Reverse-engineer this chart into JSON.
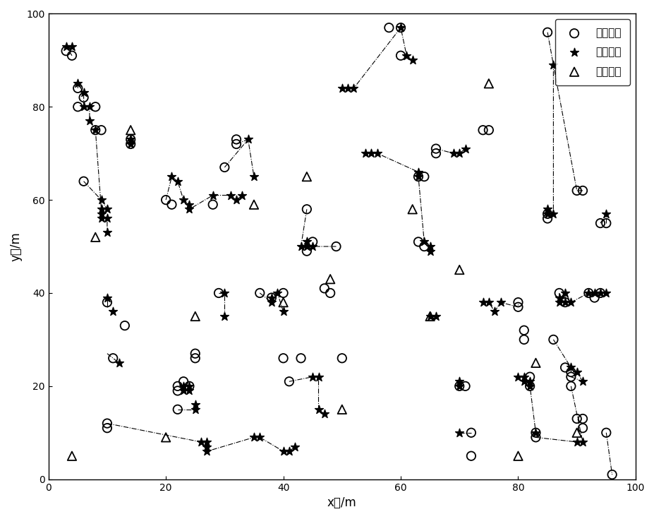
{
  "unknown_nodes_x": [
    3,
    4,
    5,
    5,
    6,
    6,
    8,
    8,
    9,
    10,
    10,
    10,
    11,
    13,
    14,
    14,
    20,
    21,
    22,
    22,
    22,
    23,
    24,
    25,
    25,
    28,
    29,
    30,
    32,
    32,
    36,
    38,
    40,
    40,
    41,
    43,
    44,
    44,
    45,
    47,
    48,
    49,
    50,
    58,
    60,
    60,
    63,
    64,
    63,
    64,
    66,
    66,
    70,
    71,
    72,
    72,
    74,
    75,
    80,
    80,
    81,
    81,
    82,
    82,
    83,
    83,
    85,
    85,
    85,
    86,
    87,
    88,
    88,
    89,
    89,
    89,
    90,
    91,
    90,
    91,
    91,
    92,
    93,
    94,
    94,
    95,
    95,
    96
  ],
  "unknown_nodes_y": [
    92,
    91,
    84,
    80,
    82,
    64,
    80,
    75,
    75,
    12,
    11,
    38,
    26,
    33,
    72,
    73,
    60,
    59,
    20,
    19,
    15,
    21,
    20,
    26,
    27,
    59,
    40,
    67,
    72,
    73,
    40,
    39,
    40,
    26,
    21,
    26,
    58,
    49,
    51,
    41,
    40,
    50,
    26,
    97,
    97,
    91,
    65,
    65,
    51,
    50,
    71,
    70,
    20,
    20,
    10,
    5,
    75,
    75,
    38,
    37,
    32,
    30,
    22,
    20,
    10,
    9,
    57,
    56,
    96,
    30,
    40,
    38,
    24,
    23,
    22,
    20,
    13,
    13,
    62,
    62,
    11,
    40,
    39,
    40,
    55,
    55,
    10,
    1
  ],
  "star_nodes_x": [
    3,
    4,
    5,
    6,
    6,
    7,
    7,
    8,
    9,
    9,
    9,
    9,
    10,
    10,
    10,
    10,
    11,
    12,
    14,
    14,
    21,
    22,
    23,
    24,
    24,
    23,
    23,
    24,
    24,
    25,
    25,
    26,
    27,
    27,
    27,
    28,
    30,
    30,
    31,
    32,
    33,
    34,
    35,
    35,
    36,
    38,
    38,
    39,
    40,
    40,
    41,
    42,
    43,
    44,
    44,
    45,
    45,
    46,
    46,
    47,
    50,
    51,
    52,
    54,
    55,
    56,
    60,
    61,
    62,
    63,
    63,
    64,
    65,
    65,
    65,
    66,
    69,
    70,
    71,
    70,
    70,
    70,
    74,
    75,
    76,
    77,
    80,
    81,
    81,
    82,
    82,
    83,
    85,
    85,
    86,
    86,
    87,
    87,
    88,
    88,
    89,
    89,
    90,
    90,
    91,
    91,
    92,
    93,
    94,
    95,
    95
  ],
  "star_nodes_y": [
    93,
    93,
    85,
    83,
    80,
    80,
    77,
    75,
    60,
    58,
    57,
    56,
    58,
    56,
    53,
    39,
    36,
    25,
    72,
    73,
    65,
    64,
    60,
    59,
    58,
    20,
    19,
    20,
    19,
    16,
    15,
    8,
    8,
    7,
    6,
    61,
    40,
    35,
    61,
    60,
    61,
    73,
    65,
    9,
    9,
    39,
    38,
    40,
    36,
    6,
    6,
    7,
    50,
    51,
    50,
    50,
    22,
    22,
    15,
    14,
    84,
    84,
    84,
    70,
    70,
    70,
    97,
    91,
    90,
    65,
    66,
    51,
    50,
    49,
    35,
    35,
    70,
    70,
    71,
    20,
    21,
    10,
    38,
    38,
    36,
    38,
    22,
    22,
    21,
    21,
    20,
    10,
    57,
    58,
    57,
    89,
    38,
    39,
    40,
    38,
    38,
    24,
    23,
    8,
    21,
    8,
    40,
    40,
    40,
    40,
    57
  ],
  "beacon_nodes_x": [
    4,
    8,
    14,
    20,
    25,
    35,
    40,
    44,
    48,
    50,
    62,
    65,
    70,
    75,
    80,
    83,
    90
  ],
  "beacon_nodes_y": [
    5,
    52,
    75,
    9,
    35,
    59,
    38,
    65,
    43,
    15,
    58,
    35,
    45,
    85,
    5,
    25,
    10
  ],
  "line_chains": [
    [
      [
        4,
        91
      ],
      [
        3,
        93
      ]
    ],
    [
      [
        5,
        84
      ],
      [
        5,
        85
      ],
      [
        6,
        83
      ],
      [
        6,
        80
      ],
      [
        7,
        80
      ],
      [
        7,
        77
      ],
      [
        8,
        75
      ],
      [
        9,
        58
      ],
      [
        9,
        57
      ],
      [
        9,
        56
      ],
      [
        10,
        56
      ],
      [
        10,
        53
      ]
    ],
    [
      [
        6,
        64
      ],
      [
        9,
        60
      ],
      [
        10,
        58
      ]
    ],
    [
      [
        20,
        60
      ],
      [
        21,
        65
      ],
      [
        22,
        64
      ],
      [
        23,
        60
      ],
      [
        24,
        59
      ],
      [
        24,
        58
      ],
      [
        28,
        61
      ],
      [
        31,
        61
      ],
      [
        32,
        60
      ],
      [
        33,
        61
      ]
    ],
    [
      [
        10,
        38
      ],
      [
        10,
        39
      ],
      [
        10,
        37
      ]
    ],
    [
      [
        10,
        27
      ],
      [
        11,
        26
      ],
      [
        12,
        25
      ]
    ],
    [
      [
        10,
        12
      ],
      [
        26,
        8
      ],
      [
        27,
        8
      ],
      [
        27,
        7
      ],
      [
        27,
        6
      ],
      [
        35,
        9
      ],
      [
        36,
        9
      ],
      [
        40,
        6
      ],
      [
        41,
        6
      ],
      [
        42,
        7
      ]
    ],
    [
      [
        22,
        20
      ],
      [
        23,
        20
      ],
      [
        23,
        19
      ],
      [
        24,
        19
      ],
      [
        24,
        20
      ]
    ],
    [
      [
        22,
        15
      ],
      [
        25,
        15
      ],
      [
        25,
        16
      ]
    ],
    [
      [
        29,
        40
      ],
      [
        30,
        40
      ],
      [
        30,
        35
      ]
    ],
    [
      [
        30,
        67
      ],
      [
        34,
        73
      ],
      [
        35,
        65
      ]
    ],
    [
      [
        32,
        72
      ],
      [
        34,
        73
      ]
    ],
    [
      [
        36,
        40
      ],
      [
        38,
        38
      ],
      [
        38,
        39
      ],
      [
        39,
        40
      ],
      [
        40,
        36
      ]
    ],
    [
      [
        41,
        21
      ],
      [
        45,
        22
      ],
      [
        46,
        22
      ],
      [
        46,
        15
      ],
      [
        47,
        14
      ]
    ],
    [
      [
        44,
        58
      ],
      [
        43,
        50
      ],
      [
        44,
        51
      ],
      [
        44,
        50
      ],
      [
        45,
        50
      ],
      [
        49,
        50
      ]
    ],
    [
      [
        50,
        84
      ],
      [
        51,
        84
      ],
      [
        52,
        84
      ],
      [
        60,
        97
      ],
      [
        61,
        91
      ],
      [
        62,
        90
      ]
    ],
    [
      [
        54,
        70
      ],
      [
        55,
        70
      ],
      [
        56,
        70
      ],
      [
        63,
        66
      ],
      [
        63,
        65
      ],
      [
        64,
        51
      ],
      [
        65,
        50
      ],
      [
        65,
        49
      ]
    ],
    [
      [
        65,
        35
      ],
      [
        66,
        35
      ]
    ],
    [
      [
        66,
        71
      ],
      [
        69,
        70
      ],
      [
        70,
        70
      ],
      [
        71,
        71
      ]
    ],
    [
      [
        70,
        20
      ],
      [
        70,
        21
      ]
    ],
    [
      [
        70,
        10
      ],
      [
        72,
        10
      ]
    ],
    [
      [
        74,
        38
      ],
      [
        75,
        38
      ],
      [
        76,
        36
      ],
      [
        77,
        38
      ],
      [
        80,
        37
      ],
      [
        80,
        38
      ]
    ],
    [
      [
        80,
        22
      ],
      [
        81,
        22
      ],
      [
        81,
        21
      ],
      [
        82,
        21
      ],
      [
        82,
        20
      ],
      [
        83,
        10
      ]
    ],
    [
      [
        83,
        9
      ],
      [
        90,
        8
      ],
      [
        91,
        8
      ]
    ],
    [
      [
        85,
        96
      ],
      [
        86,
        89
      ]
    ],
    [
      [
        85,
        57
      ],
      [
        85,
        58
      ],
      [
        86,
        57
      ],
      [
        86,
        89
      ],
      [
        90,
        62
      ],
      [
        91,
        62
      ]
    ],
    [
      [
        86,
        30
      ],
      [
        89,
        24
      ],
      [
        89,
        23
      ],
      [
        90,
        23
      ],
      [
        91,
        21
      ]
    ],
    [
      [
        87,
        40
      ],
      [
        87,
        38
      ],
      [
        87,
        39
      ],
      [
        88,
        38
      ],
      [
        88,
        40
      ],
      [
        89,
        38
      ],
      [
        92,
        40
      ],
      [
        93,
        40
      ],
      [
        94,
        40
      ],
      [
        95,
        40
      ]
    ],
    [
      [
        89,
        22
      ],
      [
        91,
        21
      ]
    ],
    [
      [
        89,
        20
      ],
      [
        91,
        8
      ]
    ],
    [
      [
        94,
        55
      ],
      [
        95,
        57
      ]
    ],
    [
      [
        95,
        55
      ],
      [
        95,
        57
      ]
    ],
    [
      [
        95,
        10
      ],
      [
        96,
        1
      ]
    ]
  ],
  "xlabel": "x轴/m",
  "ylabel": "y轴/m",
  "xlim": [
    0,
    100
  ],
  "ylim": [
    0,
    100
  ],
  "xticks": [
    0,
    20,
    40,
    60,
    80,
    100
  ],
  "yticks": [
    0,
    20,
    40,
    60,
    80,
    100
  ],
  "legend_labels": [
    "未知节点",
    "定位结果",
    "信标节点"
  ],
  "figsize": [
    9.28,
    7.35
  ],
  "dpi": 100
}
